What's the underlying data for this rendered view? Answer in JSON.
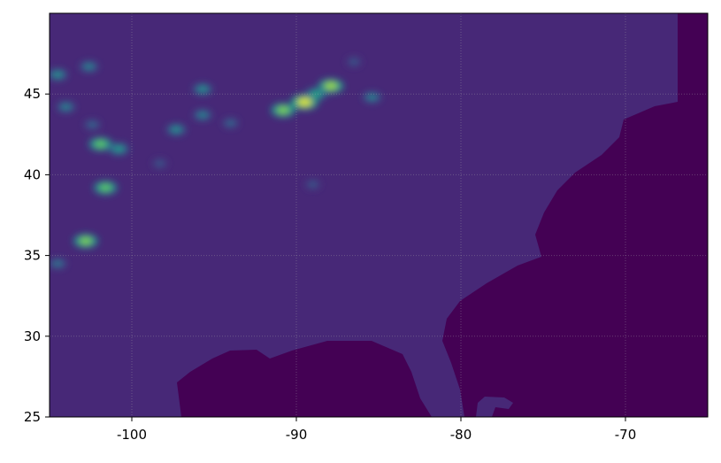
{
  "chart_data": {
    "type": "heatmap",
    "title": "",
    "xlabel": "",
    "ylabel": "",
    "xlim": [
      -105,
      -65
    ],
    "ylim": [
      25,
      50
    ],
    "grid": true,
    "colormap": "viridis",
    "x_ticks": [
      "-100",
      "-90",
      "-80",
      "-70"
    ],
    "x_tick_values": [
      -100,
      -90,
      -80,
      -70
    ],
    "y_ticks": [
      "25",
      "30",
      "35",
      "40",
      "45"
    ],
    "y_tick_values": [
      25,
      30,
      35,
      40,
      45
    ],
    "colors": {
      "land": "#472877",
      "ocean": "#440154"
    },
    "hotspots": [
      {
        "lon": -89.5,
        "lat": 44.5,
        "value": 0.95
      },
      {
        "lon": -90.8,
        "lat": 44.0,
        "value": 0.8
      },
      {
        "lon": -87.9,
        "lat": 45.5,
        "value": 0.85
      },
      {
        "lon": -88.8,
        "lat": 45.0,
        "value": 0.6
      },
      {
        "lon": -101.6,
        "lat": 39.2,
        "value": 0.75
      },
      {
        "lon": -102.8,
        "lat": 35.9,
        "value": 0.8
      },
      {
        "lon": -101.9,
        "lat": 41.9,
        "value": 0.75
      },
      {
        "lon": -100.8,
        "lat": 41.6,
        "value": 0.55
      },
      {
        "lon": -97.3,
        "lat": 42.8,
        "value": 0.5
      },
      {
        "lon": -95.7,
        "lat": 43.7,
        "value": 0.45
      },
      {
        "lon": -95.7,
        "lat": 45.3,
        "value": 0.5
      },
      {
        "lon": -102.4,
        "lat": 43.1,
        "value": 0.35
      },
      {
        "lon": -85.4,
        "lat": 44.8,
        "value": 0.45
      },
      {
        "lon": -102.6,
        "lat": 46.7,
        "value": 0.45
      },
      {
        "lon": -104.5,
        "lat": 46.2,
        "value": 0.5
      },
      {
        "lon": -98.3,
        "lat": 40.7,
        "value": 0.3
      },
      {
        "lon": -89.0,
        "lat": 39.4,
        "value": 0.3
      },
      {
        "lon": -94.0,
        "lat": 43.2,
        "value": 0.35
      },
      {
        "lon": -104.0,
        "lat": 44.2,
        "value": 0.45
      },
      {
        "lon": -86.5,
        "lat": 47.0,
        "value": 0.3
      },
      {
        "lon": -104.5,
        "lat": 34.5,
        "value": 0.4
      }
    ]
  }
}
